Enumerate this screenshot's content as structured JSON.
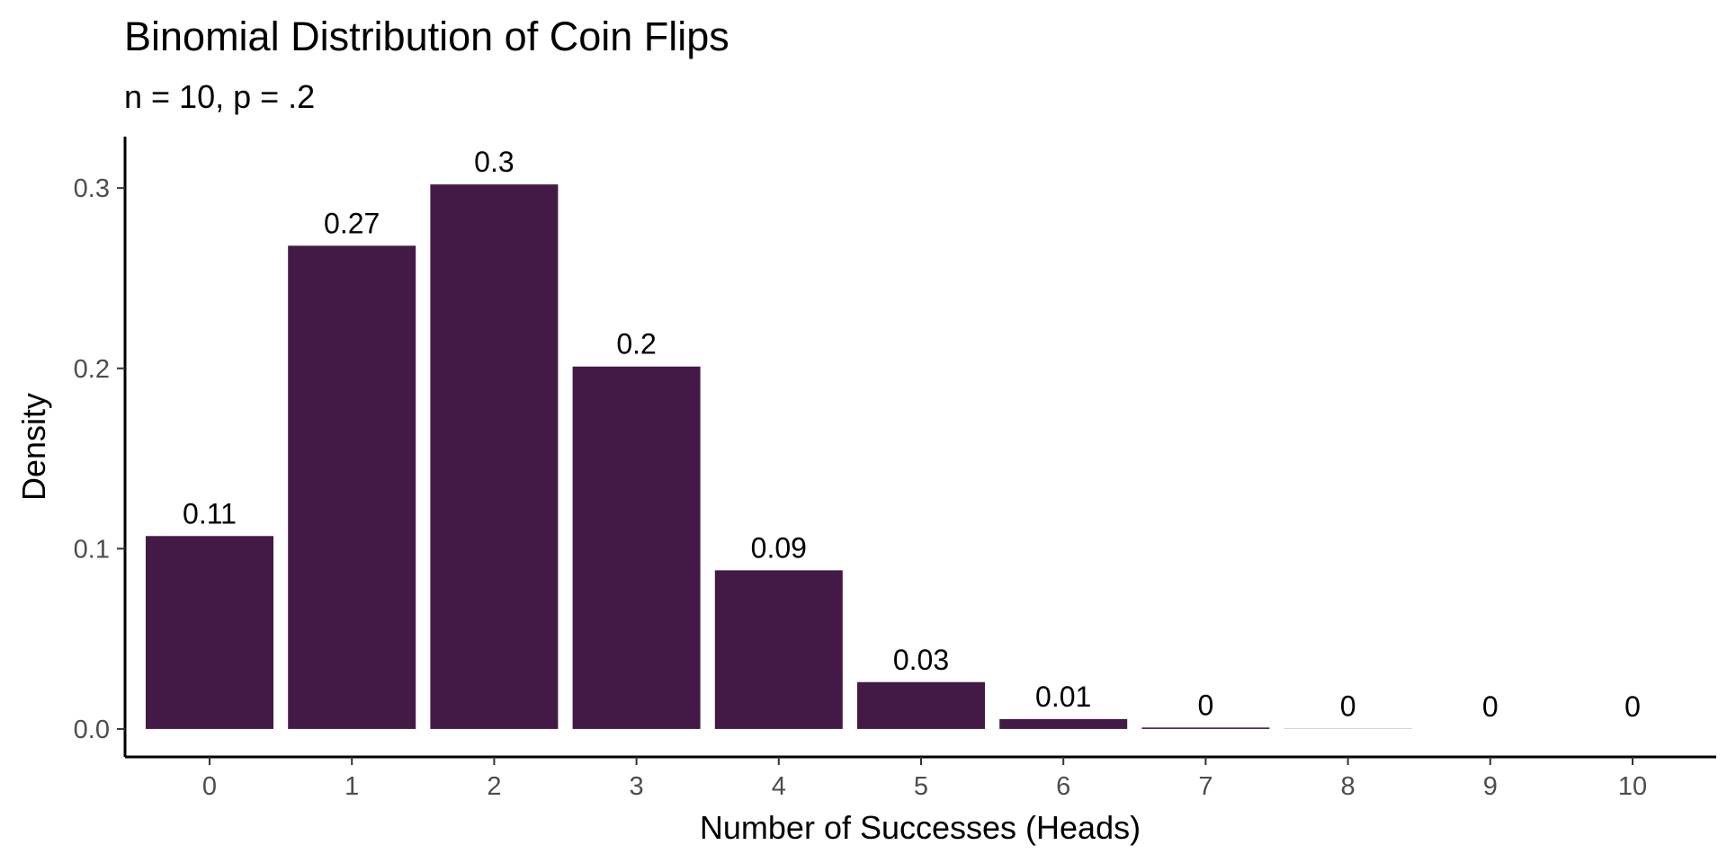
{
  "chart_data": {
    "type": "bar",
    "title": "Binomial Distribution of Coin Flips",
    "subtitle": "n = 10, p = .2",
    "xlabel": "Number of Successes (Heads)",
    "ylabel": "Density",
    "categories": [
      "0",
      "1",
      "2",
      "3",
      "4",
      "5",
      "6",
      "7",
      "8",
      "9",
      "10"
    ],
    "values": [
      0.107,
      0.268,
      0.302,
      0.201,
      0.088,
      0.026,
      0.0055,
      0.0008,
      0.0001,
      0.0,
      0.0
    ],
    "data_labels": [
      "0.11",
      "0.27",
      "0.3",
      "0.2",
      "0.09",
      "0.03",
      "0.01",
      "0",
      "0",
      "0",
      "0"
    ],
    "yticks": [
      "0.0",
      "0.1",
      "0.2",
      "0.3"
    ],
    "ytick_values": [
      0,
      0.1,
      0.2,
      0.3
    ],
    "ylim": [
      -0.0155,
      0.3285
    ],
    "bar_color": "#431a45",
    "grid": false,
    "legend": "none"
  }
}
